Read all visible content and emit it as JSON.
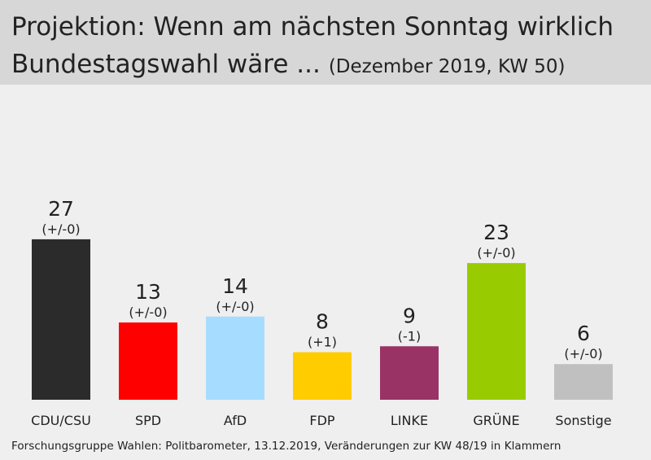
{
  "header": {
    "title_line1": "Projektion: Wenn am nächsten Sonntag wirklich",
    "title_line2": "Bundestagswahl wäre ...",
    "subtitle": "(Dezember 2019, KW 50)"
  },
  "footer": {
    "source": "Forschungsgruppe  Wahlen: Politbarometer, 13.12.2019,  Veränderungen  zur  KW 48/19  in Klammern"
  },
  "chart_data": {
    "type": "bar",
    "title": "Projektion: Wenn am nächsten Sonntag wirklich Bundestagswahl wäre ...",
    "subtitle": "(Dezember 2019, KW 50)",
    "categories": [
      "CDU/CSU",
      "SPD",
      "AfD",
      "FDP",
      "LINKE",
      "GRÜNE",
      "Sonstige"
    ],
    "values": [
      27,
      13,
      14,
      8,
      9,
      23,
      6
    ],
    "changes": [
      "(+/-0)",
      "(+/-0)",
      "(+/-0)",
      "(+1)",
      "(-1)",
      "(+/-0)",
      "(+/-0)"
    ],
    "colors": [
      "#2b2b2b",
      "#ff0000",
      "#a6dcff",
      "#ffcc00",
      "#993366",
      "#99cc00",
      "#c0c0c0"
    ],
    "ylim": [
      0,
      30
    ],
    "grid": false,
    "xlabel": "",
    "ylabel": ""
  }
}
